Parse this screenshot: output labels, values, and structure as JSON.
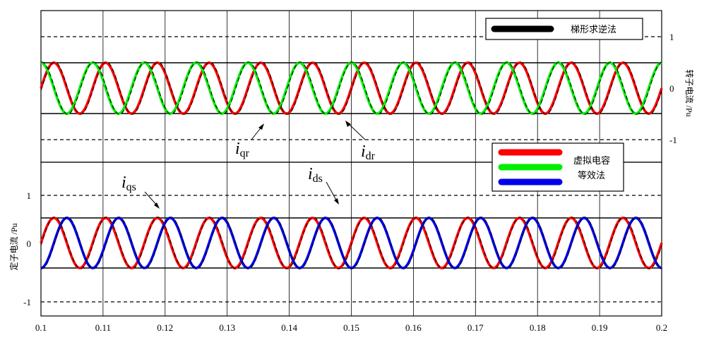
{
  "chart_data": [
    {
      "panel": "top",
      "type": "line",
      "ylabel": "转子电流 /Pu",
      "xlim": [
        0.1,
        0.2
      ],
      "ylim": [
        -1.35,
        1.35
      ],
      "yticks": [
        1,
        0,
        -1
      ],
      "grid": true,
      "legend": {
        "placement": "top-right",
        "entries": [
          "梯形求逆法"
        ]
      },
      "series": [
        {
          "name": "i_qr",
          "color": "#ff0000",
          "amplitude": 0.8,
          "frequency_hz": 120,
          "phase_deg": 0,
          "offset": 0.05
        },
        {
          "name": "i_dr",
          "color": "#00ee00",
          "amplitude": 0.8,
          "frequency_hz": 120,
          "phase_deg": 90,
          "offset": 0.05
        },
        {
          "name": "梯形求逆法",
          "style": "dashed",
          "color": "#000000",
          "overlays": [
            "i_qr",
            "i_dr"
          ]
        }
      ],
      "annotations": [
        {
          "base": "i",
          "sub": "qr"
        },
        {
          "base": "i",
          "sub": "dr"
        }
      ]
    },
    {
      "panel": "bottom",
      "type": "line",
      "xlabel": "",
      "ylabel": "定子电流 /Pu",
      "xlim": [
        0.1,
        0.2
      ],
      "ylim": [
        -1.35,
        1.35
      ],
      "yticks": [
        1,
        0,
        -1
      ],
      "xticks": [
        "0.1",
        "0.11",
        "0.12",
        "0.13",
        "0.14",
        "0.15",
        "0.16",
        "0.17",
        "0.18",
        "0.19",
        "0.2"
      ],
      "grid": true,
      "legend": {
        "placement": "top-right",
        "entries": [
          "虚拟电容等效法"
        ]
      },
      "series": [
        {
          "name": "i_qs",
          "color": "#ff0000",
          "amplitude": 0.8,
          "frequency_hz": 120,
          "phase_deg": 0,
          "offset": 0.0
        },
        {
          "name": "i_ds",
          "color": "#0000ee",
          "amplitude": 0.8,
          "frequency_hz": 120,
          "phase_deg": -90,
          "offset": 0.0
        },
        {
          "name": "虚拟电容等效法",
          "style": "dashed",
          "color": "#000000",
          "overlays": [
            "i_qs",
            "i_ds"
          ]
        }
      ],
      "annotations": [
        {
          "base": "i",
          "sub": "qs"
        },
        {
          "base": "i",
          "sub": "ds"
        }
      ]
    }
  ],
  "legends": {
    "top": {
      "label": "梯形求逆法",
      "swatch_color": "#000000"
    },
    "bottom": {
      "line1": "虚拟电容",
      "line2": "等效法",
      "swatch_colors": [
        "#ff0000",
        "#00ee00",
        "#0000ee"
      ]
    }
  },
  "labels": {
    "top_ylabel": "转子电流 /Pu",
    "bottom_ylabel": "定子电流 /Pu",
    "ytick_top": [
      "1",
      "0",
      "-1"
    ],
    "ytick_bottom": [
      "1",
      "0",
      "-1"
    ]
  }
}
